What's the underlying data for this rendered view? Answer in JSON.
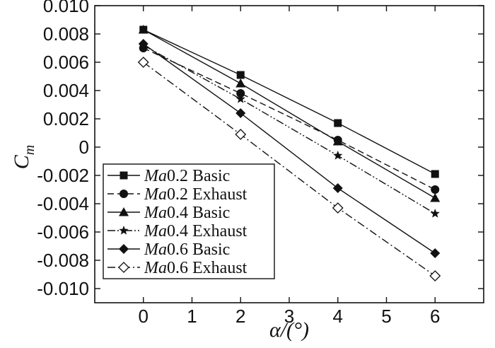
{
  "chart_data": {
    "type": "line",
    "title": "",
    "xlabel": "α/(°)",
    "ylabel": "C",
    "ylabel_subscript": "m",
    "xlim": [
      -1,
      7
    ],
    "ylim": [
      -0.011,
      0.01
    ],
    "x_ticks": [
      0,
      1,
      2,
      3,
      4,
      5,
      6
    ],
    "y_ticks": [
      0.01,
      0.008,
      0.006,
      0.004,
      0.002,
      0,
      -0.002,
      -0.004,
      -0.006,
      -0.008,
      -0.01
    ],
    "y_tick_labels": [
      "0.010",
      "0.008",
      "0.006",
      "0.004",
      "0.002",
      "0",
      "-0.002",
      "-0.004",
      "-0.006",
      "-0.008",
      "-0.010"
    ],
    "x_tick_labels": [
      "0",
      "1",
      "2",
      "3",
      "4",
      "5",
      "6"
    ],
    "grid": false,
    "legend_position": "bottom-left",
    "x": [
      0,
      2,
      4,
      6
    ],
    "series": [
      {
        "name": "Ma0.2 Basic",
        "name_italic": "Ma",
        "name_rest": "0.2 Basic",
        "values": [
          0.0083,
          0.0051,
          0.0017,
          -0.0019
        ],
        "marker": "square",
        "dash": "solid"
      },
      {
        "name": "Ma0.2 Exhaust",
        "name_italic": "Ma",
        "name_rest": "0.2 Exhaust",
        "values": [
          0.007,
          0.0038,
          0.0005,
          -0.003
        ],
        "marker": "circle",
        "dash": "dashed"
      },
      {
        "name": "Ma0.4 Basic",
        "name_italic": "Ma",
        "name_rest": "0.4 Basic",
        "values": [
          0.0083,
          0.0045,
          0.0004,
          -0.0036
        ],
        "marker": "triangle",
        "dash": "solid"
      },
      {
        "name": "Ma0.4 Exhaust",
        "name_italic": "Ma",
        "name_rest": "0.4 Exhaust",
        "values": [
          0.0072,
          0.0034,
          -0.0006,
          -0.0047
        ],
        "marker": "star",
        "dash": "dash-dot-dot"
      },
      {
        "name": "Ma0.6 Basic",
        "name_italic": "Ma",
        "name_rest": "0.6 Basic",
        "values": [
          0.0073,
          0.0024,
          -0.0029,
          -0.0075
        ],
        "marker": "diamond-filled",
        "dash": "solid"
      },
      {
        "name": "Ma0.6 Exhaust",
        "name_italic": "Ma",
        "name_rest": "0.6 Exhaust",
        "values": [
          0.006,
          0.0009,
          -0.0043,
          -0.0091
        ],
        "marker": "diamond-open",
        "dash": "dash-dot"
      }
    ]
  }
}
